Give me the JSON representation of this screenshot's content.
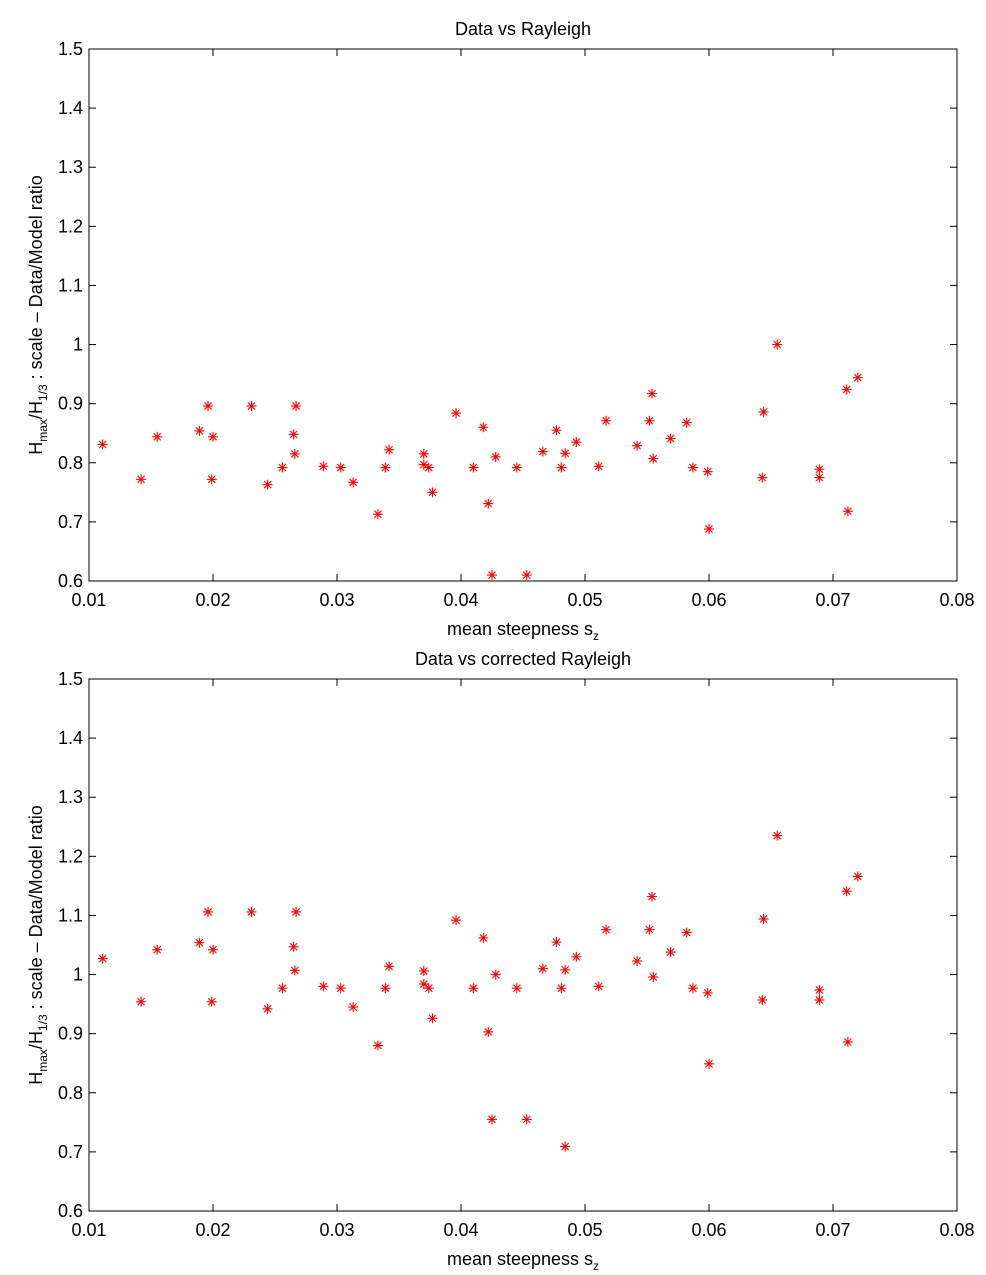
{
  "chart_data": [
    {
      "type": "scatter",
      "title": "Data vs Rayleigh",
      "xlabel": {
        "main": "mean steepness s",
        "subscript": "z"
      },
      "ylabel": {
        "parts": [
          "H",
          "max",
          "/H",
          "1/3",
          " : scale – Data/Model ratio"
        ]
      },
      "xlim": [
        0.01,
        0.08
      ],
      "ylim": [
        0.6,
        1.5
      ],
      "xticks": [
        "0.01",
        "0.02",
        "0.03",
        "0.04",
        "0.05",
        "0.06",
        "0.07",
        "0.08"
      ],
      "yticks": [
        "0.6",
        "0.7",
        "0.8",
        "0.9",
        "1",
        "1.1",
        "1.2",
        "1.3",
        "1.4",
        "1.5"
      ],
      "marker": "*",
      "marker_color": "#ff0000",
      "grid": false,
      "points": [
        [
          0.0111,
          0.831
        ],
        [
          0.0142,
          0.772
        ],
        [
          0.0155,
          0.844
        ],
        [
          0.0189,
          0.854
        ],
        [
          0.0196,
          0.896
        ],
        [
          0.0199,
          0.772
        ],
        [
          0.02,
          0.844
        ],
        [
          0.0231,
          0.896
        ],
        [
          0.0244,
          0.763
        ],
        [
          0.0256,
          0.792
        ],
        [
          0.0265,
          0.848
        ],
        [
          0.0266,
          0.815
        ],
        [
          0.0267,
          0.896
        ],
        [
          0.0289,
          0.794
        ],
        [
          0.0303,
          0.792
        ],
        [
          0.0313,
          0.767
        ],
        [
          0.0333,
          0.713
        ],
        [
          0.0339,
          0.792
        ],
        [
          0.0342,
          0.822
        ],
        [
          0.037,
          0.815
        ],
        [
          0.037,
          0.797
        ],
        [
          0.0374,
          0.792
        ],
        [
          0.0377,
          0.75
        ],
        [
          0.0396,
          0.884
        ],
        [
          0.041,
          0.792
        ],
        [
          0.0418,
          0.86
        ],
        [
          0.0422,
          0.731
        ],
        [
          0.0425,
          0.61
        ],
        [
          0.0428,
          0.81
        ],
        [
          0.0445,
          0.792
        ],
        [
          0.0453,
          0.61
        ],
        [
          0.0466,
          0.819
        ],
        [
          0.0477,
          0.855
        ],
        [
          0.0481,
          0.792
        ],
        [
          0.0484,
          0.816
        ],
        [
          0.0493,
          0.835
        ],
        [
          0.0511,
          0.794
        ],
        [
          0.0517,
          0.871
        ],
        [
          0.0542,
          0.829
        ],
        [
          0.0552,
          0.871
        ],
        [
          0.0554,
          0.917
        ],
        [
          0.0555,
          0.807
        ],
        [
          0.0569,
          0.841
        ],
        [
          0.0582,
          0.868
        ],
        [
          0.0587,
          0.792
        ],
        [
          0.0599,
          0.785
        ],
        [
          0.06,
          0.688
        ],
        [
          0.0643,
          0.775
        ],
        [
          0.0644,
          0.886
        ],
        [
          0.0655,
          1.0
        ],
        [
          0.0689,
          0.775
        ],
        [
          0.0689,
          0.789
        ],
        [
          0.0711,
          0.924
        ],
        [
          0.0712,
          0.718
        ],
        [
          0.072,
          0.944
        ]
      ]
    },
    {
      "type": "scatter",
      "title": "Data vs corrected Rayleigh",
      "xlabel": {
        "main": "mean steepness s",
        "subscript": "z"
      },
      "ylabel": {
        "parts": [
          "H",
          "max",
          "/H",
          "1/3",
          " : scale – Data/Model ratio"
        ]
      },
      "xlim": [
        0.01,
        0.08
      ],
      "ylim": [
        0.6,
        1.5
      ],
      "xticks": [
        "0.01",
        "0.02",
        "0.03",
        "0.04",
        "0.05",
        "0.06",
        "0.07",
        "0.08"
      ],
      "yticks": [
        "0.6",
        "0.7",
        "0.8",
        "0.9",
        "1",
        "1.1",
        "1.2",
        "1.3",
        "1.4",
        "1.5"
      ],
      "marker": "*",
      "marker_color": "#ff0000",
      "grid": false,
      "points": [
        [
          0.0111,
          1.027
        ],
        [
          0.0142,
          0.954
        ],
        [
          0.0155,
          1.042
        ],
        [
          0.0189,
          1.054
        ],
        [
          0.0196,
          1.106
        ],
        [
          0.0199,
          0.954
        ],
        [
          0.02,
          1.042
        ],
        [
          0.0231,
          1.106
        ],
        [
          0.0244,
          0.942
        ],
        [
          0.0256,
          0.977
        ],
        [
          0.0265,
          1.047
        ],
        [
          0.0266,
          1.007
        ],
        [
          0.0267,
          1.106
        ],
        [
          0.0289,
          0.98
        ],
        [
          0.0303,
          0.977
        ],
        [
          0.0313,
          0.945
        ],
        [
          0.0333,
          0.88
        ],
        [
          0.0339,
          0.977
        ],
        [
          0.0342,
          1.014
        ],
        [
          0.037,
          1.006
        ],
        [
          0.037,
          0.984
        ],
        [
          0.0374,
          0.977
        ],
        [
          0.0377,
          0.926
        ],
        [
          0.0396,
          1.092
        ],
        [
          0.041,
          0.977
        ],
        [
          0.0418,
          1.062
        ],
        [
          0.0422,
          0.903
        ],
        [
          0.0425,
          0.755
        ],
        [
          0.0428,
          1.0
        ],
        [
          0.0445,
          0.977
        ],
        [
          0.0453,
          0.755
        ],
        [
          0.0466,
          1.01
        ],
        [
          0.0477,
          1.055
        ],
        [
          0.0481,
          0.977
        ],
        [
          0.0484,
          0.709
        ],
        [
          0.0484,
          1.008
        ],
        [
          0.0493,
          1.03
        ],
        [
          0.0511,
          0.98
        ],
        [
          0.0517,
          1.076
        ],
        [
          0.0542,
          1.023
        ],
        [
          0.0552,
          1.076
        ],
        [
          0.0554,
          1.132
        ],
        [
          0.0555,
          0.996
        ],
        [
          0.0569,
          1.038
        ],
        [
          0.0582,
          1.071
        ],
        [
          0.0587,
          0.977
        ],
        [
          0.0599,
          0.969
        ],
        [
          0.06,
          0.849
        ],
        [
          0.0643,
          0.957
        ],
        [
          0.0644,
          1.094
        ],
        [
          0.0655,
          1.235
        ],
        [
          0.0689,
          0.957
        ],
        [
          0.0689,
          0.974
        ],
        [
          0.0711,
          1.141
        ],
        [
          0.0712,
          0.886
        ],
        [
          0.072,
          1.166
        ]
      ]
    }
  ]
}
